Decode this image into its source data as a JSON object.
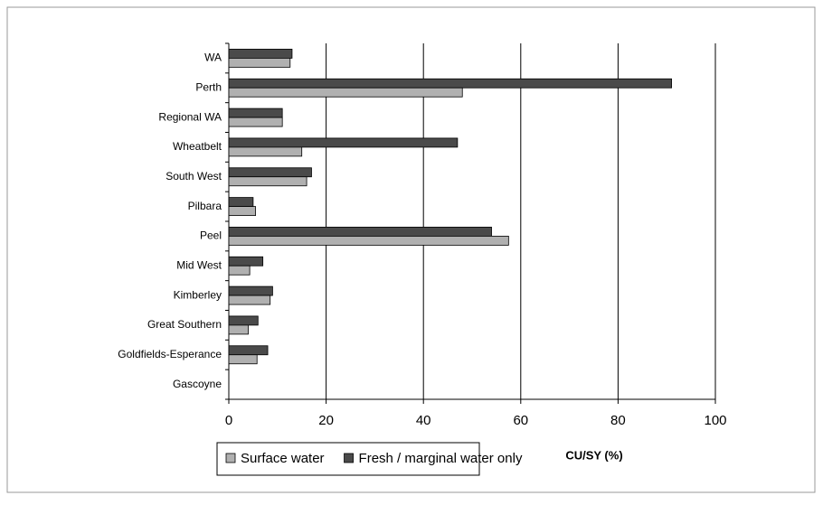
{
  "chart_data": {
    "type": "bar",
    "orientation": "horizontal",
    "x_label": "CU/SY (%)",
    "categories": [
      "WA",
      "Perth",
      "Regional WA",
      "Wheatbelt",
      "South West",
      "Pilbara",
      "Peel",
      "Mid West",
      "Kimberley",
      "Great Southern",
      "Goldfields-Esperance",
      "Gascoyne"
    ],
    "series": [
      {
        "name": "Surface water",
        "color": "#b0b0b0",
        "values": [
          12.6,
          48,
          11,
          15,
          16,
          5.5,
          57.5,
          4.3,
          8.5,
          4,
          5.8,
          0
        ]
      },
      {
        "name": "Fresh / marginal water only",
        "color": "#4a4a4a",
        "values": [
          13,
          91,
          11,
          47,
          17,
          5,
          54,
          7,
          9,
          6,
          8,
          0
        ]
      }
    ],
    "xlim": [
      0,
      100
    ],
    "xticks": [
      0,
      20,
      40,
      60,
      80,
      100
    ],
    "grid": true,
    "legend": "bottom"
  }
}
